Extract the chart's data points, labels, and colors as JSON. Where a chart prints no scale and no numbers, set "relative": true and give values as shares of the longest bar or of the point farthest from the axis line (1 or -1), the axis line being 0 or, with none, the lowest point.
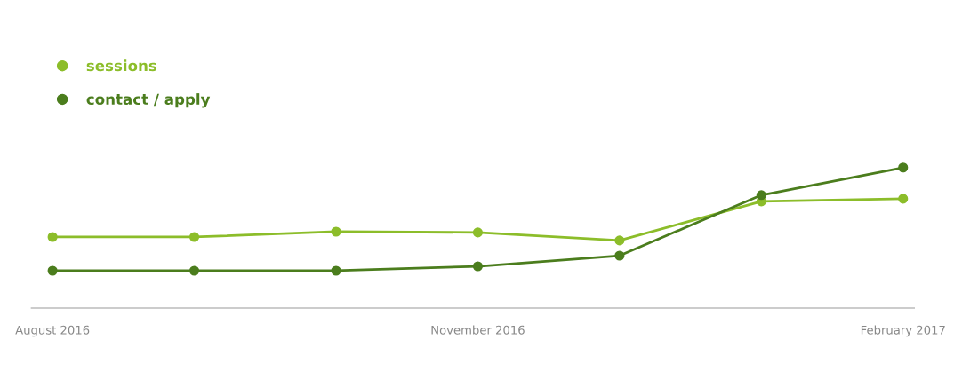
{
  "chart_data": {
    "type": "line",
    "relative": true,
    "categories": [
      "August 2016",
      null,
      null,
      "November 2016",
      null,
      null,
      "February 2017"
    ],
    "series": [
      {
        "name": "sessions",
        "color": "#8cbd2a",
        "values": [
          0.506,
          0.506,
          0.544,
          0.538,
          0.481,
          0.759,
          0.778
        ]
      },
      {
        "name": "contact / apply",
        "color": "#4b7d1d",
        "values": [
          0.266,
          0.266,
          0.266,
          0.297,
          0.373,
          0.804,
          1
        ]
      }
    ],
    "marker": "circle",
    "line_style": "solid",
    "legend": "top left",
    "grid": false
  }
}
